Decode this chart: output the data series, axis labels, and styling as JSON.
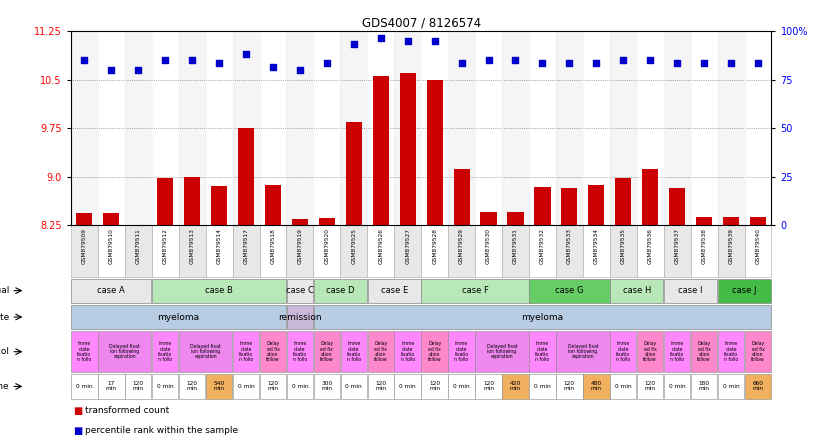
{
  "title": "GDS4007 / 8126574",
  "samples": [
    "GSM879509",
    "GSM879510",
    "GSM879511",
    "GSM879512",
    "GSM879513",
    "GSM879514",
    "GSM879517",
    "GSM879518",
    "GSM879519",
    "GSM879520",
    "GSM879525",
    "GSM879526",
    "GSM879527",
    "GSM879528",
    "GSM879529",
    "GSM879530",
    "GSM879531",
    "GSM879532",
    "GSM879533",
    "GSM879534",
    "GSM879535",
    "GSM879536",
    "GSM879537",
    "GSM879538",
    "GSM879539",
    "GSM879540"
  ],
  "bar_values": [
    8.44,
    8.44,
    8.26,
    8.98,
    9.0,
    8.86,
    9.76,
    8.88,
    8.35,
    8.36,
    9.85,
    10.56,
    10.6,
    10.5,
    9.12,
    8.46,
    8.46,
    8.84,
    8.82,
    8.88,
    8.98,
    9.12,
    8.82,
    8.38,
    8.38,
    8.38
  ],
  "dot_values": [
    10.8,
    10.65,
    10.65,
    10.8,
    10.8,
    10.75,
    10.9,
    10.7,
    10.65,
    10.75,
    11.05,
    11.15,
    11.1,
    11.1,
    10.75,
    10.8,
    10.8,
    10.75,
    10.75,
    10.75,
    10.8,
    10.8,
    10.75,
    10.75,
    10.75,
    10.75
  ],
  "bar_color": "#cc0000",
  "dot_color": "#0000cc",
  "ylim_left": [
    8.25,
    11.25
  ],
  "yticks_left": [
    8.25,
    9.0,
    9.75,
    10.5,
    11.25
  ],
  "yticks_right": [
    0,
    25,
    50,
    75,
    100
  ],
  "individual_cases": [
    {
      "label": "case A",
      "start": 0,
      "end": 2,
      "color": "#e8e8e8"
    },
    {
      "label": "case B",
      "start": 3,
      "end": 7,
      "color": "#b8e8b8"
    },
    {
      "label": "case C",
      "start": 8,
      "end": 8,
      "color": "#e8e8e8"
    },
    {
      "label": "case D",
      "start": 9,
      "end": 10,
      "color": "#b8e8b8"
    },
    {
      "label": "case E",
      "start": 11,
      "end": 12,
      "color": "#e8e8e8"
    },
    {
      "label": "case F",
      "start": 13,
      "end": 16,
      "color": "#b8e8b8"
    },
    {
      "label": "case G",
      "start": 17,
      "end": 19,
      "color": "#66cc66"
    },
    {
      "label": "case H",
      "start": 20,
      "end": 21,
      "color": "#b8e8b8"
    },
    {
      "label": "case I",
      "start": 22,
      "end": 23,
      "color": "#e8e8e8"
    },
    {
      "label": "case J",
      "start": 24,
      "end": 25,
      "color": "#44bb44"
    }
  ],
  "disease_states": [
    {
      "label": "myeloma",
      "start": 0,
      "end": 7,
      "color": "#b8cce4"
    },
    {
      "label": "remission",
      "start": 8,
      "end": 8,
      "color": "#c9b8d8"
    },
    {
      "label": "myeloma",
      "start": 9,
      "end": 25,
      "color": "#b8cce4"
    }
  ],
  "protocols": [
    {
      "label": "Imme\ndiate\nfixatio\nn follo",
      "start": 0,
      "end": 0,
      "color": "#ff88ff"
    },
    {
      "label": "Delayed fixat\nion following\naspiration",
      "start": 1,
      "end": 2,
      "color": "#ee88ee"
    },
    {
      "label": "Imme\ndiate\nfixatio\nn follo",
      "start": 3,
      "end": 3,
      "color": "#ff88ff"
    },
    {
      "label": "Delayed fixat\nion following\naspiration",
      "start": 4,
      "end": 5,
      "color": "#ee88ee"
    },
    {
      "label": "Imme\ndiate\nfixatio\nn follo",
      "start": 6,
      "end": 6,
      "color": "#ff88ff"
    },
    {
      "label": "Delay\ned fix\nation\nfollow",
      "start": 7,
      "end": 7,
      "color": "#ff88cc"
    },
    {
      "label": "Imme\ndiate\nfixatio\nn follo",
      "start": 8,
      "end": 8,
      "color": "#ff88ff"
    },
    {
      "label": "Delay\ned fix\nation\nfollow",
      "start": 9,
      "end": 9,
      "color": "#ff88cc"
    },
    {
      "label": "Imme\ndiate\nfixatio\nn follo",
      "start": 10,
      "end": 10,
      "color": "#ff88ff"
    },
    {
      "label": "Delay\ned fix\nation\nfollow",
      "start": 11,
      "end": 11,
      "color": "#ff88cc"
    },
    {
      "label": "Imme\ndiate\nfixatio\nn follo",
      "start": 12,
      "end": 12,
      "color": "#ff88ff"
    },
    {
      "label": "Delay\ned fix\nation\nfollow",
      "start": 13,
      "end": 13,
      "color": "#ff88cc"
    },
    {
      "label": "Imme\ndiate\nfixatio\nn follo",
      "start": 14,
      "end": 14,
      "color": "#ff88ff"
    },
    {
      "label": "Delayed fixat\nion following\naspiration",
      "start": 15,
      "end": 16,
      "color": "#ee88ee"
    },
    {
      "label": "Imme\ndiate\nfixatio\nn follo",
      "start": 17,
      "end": 17,
      "color": "#ff88ff"
    },
    {
      "label": "Delayed fixat\nion following\naspiration",
      "start": 18,
      "end": 19,
      "color": "#ee88ee"
    },
    {
      "label": "Imme\ndiate\nfixatio\nn follo",
      "start": 20,
      "end": 20,
      "color": "#ff88ff"
    },
    {
      "label": "Delay\ned fix\nation\nfollow",
      "start": 21,
      "end": 21,
      "color": "#ff88cc"
    },
    {
      "label": "Imme\ndiate\nfixatio\nn follo",
      "start": 22,
      "end": 22,
      "color": "#ff88ff"
    },
    {
      "label": "Delay\ned fix\nation\nfollow",
      "start": 23,
      "end": 23,
      "color": "#ff88cc"
    },
    {
      "label": "Imme\ndiate\nfixatio\nn follo",
      "start": 24,
      "end": 24,
      "color": "#ff88ff"
    },
    {
      "label": "Delay\ned fix\nation\nfollow",
      "start": 25,
      "end": 25,
      "color": "#ff88cc"
    }
  ],
  "times": [
    {
      "label": "0 min",
      "start": 0,
      "end": 0,
      "color": "#ffffff"
    },
    {
      "label": "17\nmin",
      "start": 1,
      "end": 1,
      "color": "#ffffff"
    },
    {
      "label": "120\nmin",
      "start": 2,
      "end": 2,
      "color": "#ffffff"
    },
    {
      "label": "0 min",
      "start": 3,
      "end": 3,
      "color": "#ffffff"
    },
    {
      "label": "120\nmin",
      "start": 4,
      "end": 4,
      "color": "#ffffff"
    },
    {
      "label": "540\nmin",
      "start": 5,
      "end": 5,
      "color": "#f0b060"
    },
    {
      "label": "0 min",
      "start": 6,
      "end": 6,
      "color": "#ffffff"
    },
    {
      "label": "120\nmin",
      "start": 7,
      "end": 7,
      "color": "#ffffff"
    },
    {
      "label": "0 min",
      "start": 8,
      "end": 8,
      "color": "#ffffff"
    },
    {
      "label": "300\nmin",
      "start": 9,
      "end": 9,
      "color": "#ffffff"
    },
    {
      "label": "0 min",
      "start": 10,
      "end": 10,
      "color": "#ffffff"
    },
    {
      "label": "120\nmin",
      "start": 11,
      "end": 11,
      "color": "#ffffff"
    },
    {
      "label": "0 min",
      "start": 12,
      "end": 12,
      "color": "#ffffff"
    },
    {
      "label": "120\nmin",
      "start": 13,
      "end": 13,
      "color": "#ffffff"
    },
    {
      "label": "0 min",
      "start": 14,
      "end": 14,
      "color": "#ffffff"
    },
    {
      "label": "120\nmin",
      "start": 15,
      "end": 15,
      "color": "#ffffff"
    },
    {
      "label": "420\nmin",
      "start": 16,
      "end": 16,
      "color": "#f0b060"
    },
    {
      "label": "0 min",
      "start": 17,
      "end": 17,
      "color": "#ffffff"
    },
    {
      "label": "120\nmin",
      "start": 18,
      "end": 18,
      "color": "#ffffff"
    },
    {
      "label": "480\nmin",
      "start": 19,
      "end": 19,
      "color": "#f0b060"
    },
    {
      "label": "0 min",
      "start": 20,
      "end": 20,
      "color": "#ffffff"
    },
    {
      "label": "120\nmin",
      "start": 21,
      "end": 21,
      "color": "#ffffff"
    },
    {
      "label": "0 min",
      "start": 22,
      "end": 22,
      "color": "#ffffff"
    },
    {
      "label": "180\nmin",
      "start": 23,
      "end": 23,
      "color": "#ffffff"
    },
    {
      "label": "0 min",
      "start": 24,
      "end": 24,
      "color": "#ffffff"
    },
    {
      "label": "660\nmin",
      "start": 25,
      "end": 25,
      "color": "#f0b060"
    }
  ],
  "legend_bar_color": "#cc0000",
  "legend_dot_color": "#0000cc",
  "legend_bar_label": "transformed count",
  "legend_dot_label": "percentile rank within the sample"
}
